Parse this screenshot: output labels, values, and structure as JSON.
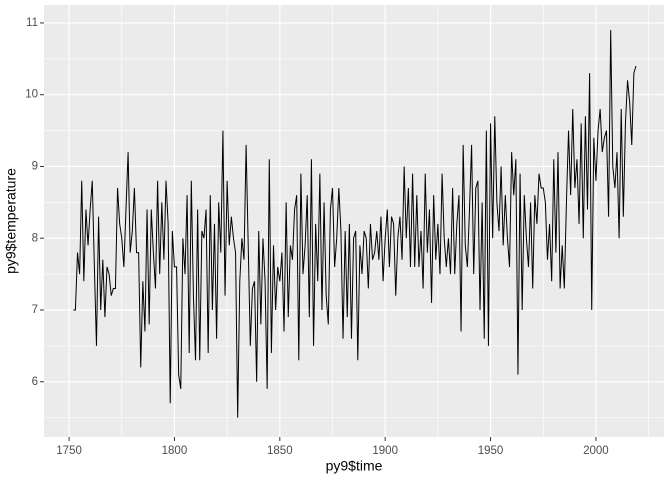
{
  "chart_data": {
    "type": "line",
    "x_label": "py9$time",
    "y_label": "py9$temperature",
    "x": [
      1752,
      1753,
      1754,
      1755,
      1756,
      1757,
      1758,
      1759,
      1760,
      1761,
      1762,
      1763,
      1764,
      1765,
      1766,
      1767,
      1768,
      1769,
      1770,
      1771,
      1772,
      1773,
      1774,
      1775,
      1776,
      1777,
      1778,
      1779,
      1780,
      1781,
      1782,
      1783,
      1784,
      1785,
      1786,
      1787,
      1788,
      1789,
      1790,
      1791,
      1792,
      1793,
      1794,
      1795,
      1796,
      1797,
      1798,
      1799,
      1800,
      1801,
      1802,
      1803,
      1804,
      1805,
      1806,
      1807,
      1808,
      1809,
      1810,
      1811,
      1812,
      1813,
      1814,
      1815,
      1816,
      1817,
      1818,
      1819,
      1820,
      1821,
      1822,
      1823,
      1824,
      1825,
      1826,
      1827,
      1828,
      1829,
      1830,
      1831,
      1832,
      1833,
      1834,
      1835,
      1836,
      1837,
      1838,
      1839,
      1840,
      1841,
      1842,
      1843,
      1844,
      1845,
      1846,
      1847,
      1848,
      1849,
      1850,
      1851,
      1852,
      1853,
      1854,
      1855,
      1856,
      1857,
      1858,
      1859,
      1860,
      1861,
      1862,
      1863,
      1864,
      1865,
      1866,
      1867,
      1868,
      1869,
      1870,
      1871,
      1872,
      1873,
      1874,
      1875,
      1876,
      1877,
      1878,
      1879,
      1880,
      1881,
      1882,
      1883,
      1884,
      1885,
      1886,
      1887,
      1888,
      1889,
      1890,
      1891,
      1892,
      1893,
      1894,
      1895,
      1896,
      1897,
      1898,
      1899,
      1900,
      1901,
      1902,
      1903,
      1904,
      1905,
      1906,
      1907,
      1908,
      1909,
      1910,
      1911,
      1912,
      1913,
      1914,
      1915,
      1916,
      1917,
      1918,
      1919,
      1920,
      1921,
      1922,
      1923,
      1924,
      1925,
      1926,
      1927,
      1928,
      1929,
      1930,
      1931,
      1932,
      1933,
      1934,
      1935,
      1936,
      1937,
      1938,
      1939,
      1940,
      1941,
      1942,
      1943,
      1944,
      1945,
      1946,
      1947,
      1948,
      1949,
      1950,
      1951,
      1952,
      1953,
      1954,
      1955,
      1956,
      1957,
      1958,
      1959,
      1960,
      1961,
      1962,
      1963,
      1964,
      1965,
      1966,
      1967,
      1968,
      1969,
      1970,
      1971,
      1972,
      1973,
      1974,
      1975,
      1976,
      1977,
      1978,
      1979,
      1980,
      1981,
      1982,
      1983,
      1984,
      1985,
      1986,
      1987,
      1988,
      1989,
      1990,
      1991,
      1992,
      1993,
      1994,
      1995,
      1996,
      1997,
      1998,
      1999,
      2000,
      2001,
      2002,
      2003,
      2004,
      2005,
      2006,
      2007,
      2008,
      2009,
      2010,
      2011,
      2012,
      2013,
      2014,
      2015,
      2016,
      2017,
      2018,
      2019
    ],
    "series": [
      {
        "name": "temperature",
        "color": "#000000",
        "values": [
          7.0,
          7.0,
          7.8,
          7.5,
          8.8,
          7.4,
          8.4,
          7.9,
          8.4,
          8.8,
          7.6,
          6.5,
          8.3,
          7.0,
          7.7,
          6.9,
          7.6,
          7.5,
          7.2,
          7.3,
          7.3,
          8.7,
          8.2,
          8.0,
          7.6,
          8.4,
          9.2,
          7.8,
          8.1,
          8.7,
          7.8,
          7.8,
          6.2,
          7.4,
          6.7,
          8.4,
          6.8,
          8.4,
          7.8,
          7.3,
          8.8,
          7.5,
          8.5,
          7.7,
          8.8,
          8.2,
          5.7,
          8.1,
          7.6,
          7.6,
          6.1,
          5.9,
          8.0,
          7.5,
          8.6,
          6.4,
          8.8,
          7.2,
          6.3,
          8.4,
          6.3,
          8.1,
          8.0,
          8.4,
          6.4,
          8.6,
          7.0,
          8.2,
          6.6,
          8.5,
          7.8,
          9.5,
          7.2,
          8.8,
          7.9,
          8.3,
          8.0,
          7.8,
          5.5,
          7.4,
          8.0,
          7.7,
          9.3,
          7.9,
          6.5,
          7.3,
          7.4,
          6.0,
          8.1,
          6.8,
          8.0,
          7.4,
          5.9,
          9.1,
          6.4,
          7.9,
          7.0,
          7.6,
          7.4,
          7.8,
          6.7,
          8.5,
          6.9,
          7.9,
          7.7,
          8.4,
          8.6,
          6.3,
          8.9,
          7.5,
          7.9,
          8.6,
          6.9,
          9.1,
          6.5,
          8.2,
          7.4,
          8.9,
          7.0,
          8.5,
          7.2,
          6.8,
          8.4,
          8.7,
          7.6,
          8.0,
          8.7,
          8.1,
          6.6,
          8.1,
          6.9,
          8.2,
          6.6,
          8.0,
          8.1,
          6.3,
          7.9,
          7.5,
          8.1,
          8.0,
          7.3,
          8.2,
          7.7,
          7.8,
          8.1,
          7.7,
          8.3,
          7.4,
          8.0,
          8.4,
          7.6,
          8.3,
          8.2,
          7.2,
          8.0,
          8.3,
          7.7,
          9.0,
          8.0,
          8.7,
          7.6,
          8.9,
          7.6,
          8.6,
          7.6,
          8.1,
          7.3,
          8.9,
          7.8,
          8.4,
          7.1,
          8.6,
          7.7,
          8.2,
          7.5,
          8.9,
          8.0,
          7.6,
          8.0,
          7.5,
          8.7,
          7.5,
          8.2,
          8.6,
          6.7,
          9.3,
          7.9,
          7.6,
          8.4,
          9.3,
          7.5,
          8.7,
          8.8,
          7.0,
          8.5,
          6.6,
          9.5,
          6.5,
          9.6,
          8.0,
          9.7,
          8.5,
          8.1,
          9.0,
          7.9,
          8.6,
          8.0,
          7.6,
          9.2,
          8.6,
          9.1,
          6.1,
          8.9,
          7.0,
          8.6,
          8.0,
          7.6,
          8.5,
          7.3,
          8.6,
          8.2,
          8.9,
          8.7,
          8.7,
          8.5,
          7.7,
          8.2,
          7.4,
          9.1,
          7.8,
          9.2,
          7.3,
          7.9,
          7.3,
          8.5,
          9.5,
          8.6,
          9.8,
          8.7,
          9.1,
          8.2,
          9.6,
          8.0,
          9.7,
          8.4,
          10.3,
          7.0,
          9.4,
          8.8,
          9.5,
          9.8,
          9.2,
          9.4,
          9.5,
          8.3,
          10.9,
          9.0,
          8.7,
          9.2,
          8.0,
          9.8,
          8.3,
          9.6,
          10.2,
          9.9,
          9.3,
          10.3,
          10.4
        ]
      }
    ],
    "xlim": [
      1738.1,
      2032.3
    ],
    "ylim": [
      5.23,
      11.25
    ],
    "xticks": [
      1750,
      1800,
      1850,
      1900,
      1950,
      2000
    ],
    "yticks": [
      6,
      7,
      8,
      9,
      10,
      11
    ],
    "grid": true
  }
}
